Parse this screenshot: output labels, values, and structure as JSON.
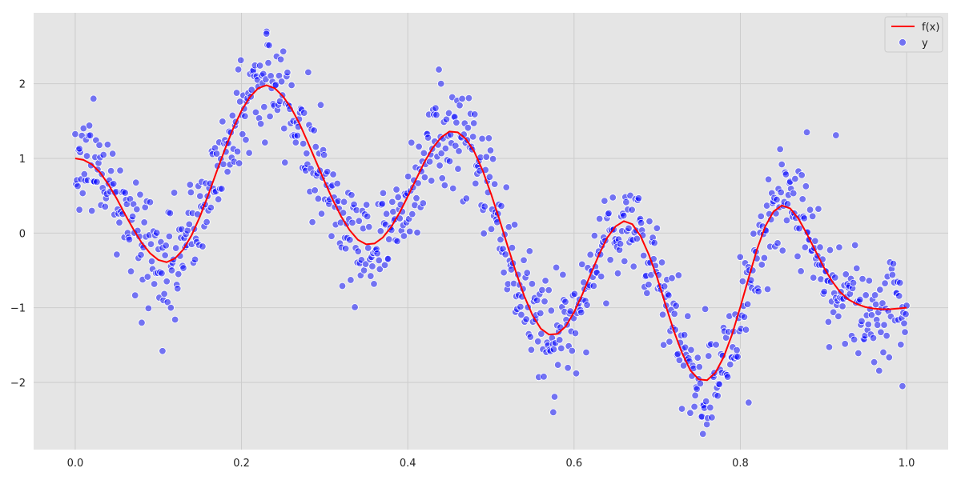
{
  "chart_data": {
    "type": "line+scatter",
    "title": "",
    "xlabel": "",
    "ylabel": "",
    "xlim": [
      -0.05,
      1.05
    ],
    "ylim": [
      -2.9,
      2.95
    ],
    "x_ticks": [
      0.0,
      0.2,
      0.4,
      0.6,
      0.8,
      1.0
    ],
    "x_tick_labels": [
      "0.0",
      "0.2",
      "0.4",
      "0.6",
      "0.8",
      "1.0"
    ],
    "y_ticks": [
      -2,
      -1,
      0,
      1,
      2
    ],
    "y_tick_labels": [
      "−2",
      "−1",
      "0",
      "1",
      "2"
    ],
    "grid": true,
    "legend_position": "top-right",
    "series": [
      {
        "name": "f(x)",
        "kind": "line",
        "color": "#ff0000",
        "x": [
          0.0,
          0.01,
          0.02,
          0.03,
          0.04,
          0.05,
          0.06,
          0.07,
          0.08,
          0.09,
          0.1,
          0.11,
          0.12,
          0.13,
          0.14,
          0.15,
          0.16,
          0.17,
          0.18,
          0.19,
          0.2,
          0.21,
          0.22,
          0.23,
          0.24,
          0.25,
          0.26,
          0.27,
          0.28,
          0.29,
          0.3,
          0.31,
          0.32,
          0.33,
          0.34,
          0.35,
          0.36,
          0.37,
          0.38,
          0.39,
          0.4,
          0.41,
          0.42,
          0.43,
          0.44,
          0.45,
          0.46,
          0.47,
          0.48,
          0.49,
          0.5,
          0.51,
          0.52,
          0.53,
          0.54,
          0.55,
          0.56,
          0.57,
          0.58,
          0.59,
          0.6,
          0.61,
          0.62,
          0.63,
          0.64,
          0.65,
          0.66,
          0.67,
          0.68,
          0.69,
          0.7,
          0.71,
          0.72,
          0.73,
          0.74,
          0.75,
          0.76,
          0.77,
          0.78,
          0.79,
          0.8,
          0.81,
          0.82,
          0.83,
          0.84,
          0.85,
          0.86,
          0.87,
          0.88,
          0.89,
          0.9,
          0.91,
          0.92,
          0.93,
          0.94,
          0.95,
          0.96,
          0.97,
          0.98,
          0.99,
          1.0
        ],
        "y": [
          1.0,
          0.98,
          0.92,
          0.81,
          0.65,
          0.46,
          0.25,
          0.05,
          -0.13,
          -0.27,
          -0.36,
          -0.39,
          -0.34,
          -0.22,
          -0.03,
          0.22,
          0.51,
          0.82,
          1.12,
          1.4,
          1.64,
          1.82,
          1.94,
          1.98,
          1.94,
          1.83,
          1.67,
          1.46,
          1.21,
          0.95,
          0.69,
          0.44,
          0.22,
          0.04,
          -0.09,
          -0.15,
          -0.14,
          -0.06,
          0.08,
          0.27,
          0.49,
          0.72,
          0.95,
          1.14,
          1.28,
          1.36,
          1.35,
          1.26,
          1.09,
          0.84,
          0.53,
          0.19,
          -0.17,
          -0.52,
          -0.84,
          -1.1,
          -1.28,
          -1.36,
          -1.35,
          -1.25,
          -1.06,
          -0.82,
          -0.55,
          -0.29,
          -0.06,
          0.09,
          0.16,
          0.12,
          -0.04,
          -0.29,
          -0.6,
          -0.96,
          -1.31,
          -1.61,
          -1.84,
          -1.96,
          -1.97,
          -1.87,
          -1.66,
          -1.36,
          -0.99,
          -0.6,
          -0.22,
          0.09,
          0.29,
          0.37,
          0.33,
          0.19,
          -0.01,
          -0.23,
          -0.45,
          -0.64,
          -0.79,
          -0.89,
          -0.95,
          -0.99,
          -1.01,
          -1.02,
          -1.02,
          -1.01,
          -1.0
        ]
      },
      {
        "name": "y",
        "kind": "scatter",
        "color": "#0000ff",
        "opacity": 0.5,
        "noise_sd": 0.35,
        "n_points": 1000,
        "outliers": [
          {
            "x": 0.105,
            "y": -1.58
          },
          {
            "x": 0.08,
            "y": -1.2
          },
          {
            "x": 0.115,
            "y": -1.0
          },
          {
            "x": 0.23,
            "y": 2.67
          },
          {
            "x": 0.44,
            "y": 2.0
          },
          {
            "x": 0.575,
            "y": -2.4
          },
          {
            "x": 0.755,
            "y": -2.69
          },
          {
            "x": 0.81,
            "y": -2.27
          },
          {
            "x": 0.88,
            "y": 1.35
          },
          {
            "x": 0.915,
            "y": 1.31
          },
          {
            "x": 0.995,
            "y": -2.05
          },
          {
            "x": 0.005,
            "y": 1.13
          },
          {
            "x": 0.022,
            "y": 1.8
          }
        ]
      }
    ]
  }
}
